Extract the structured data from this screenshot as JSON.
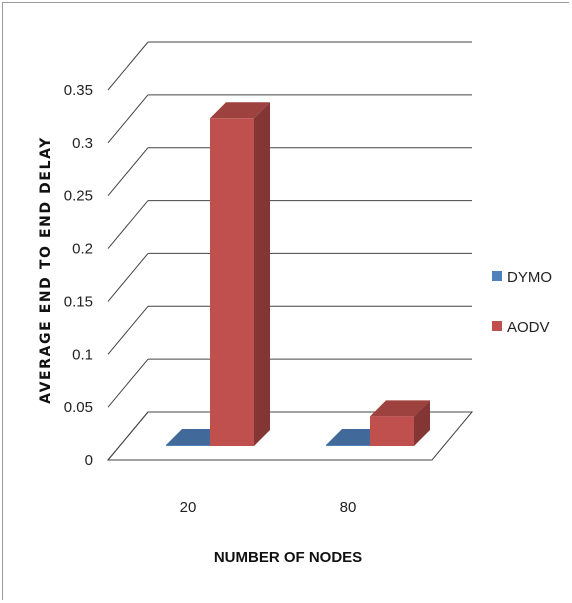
{
  "chart_data": {
    "type": "bar",
    "variant": "3d-clustered-column",
    "categories": [
      "20",
      "80"
    ],
    "series": [
      {
        "name": "DYMO",
        "values": [
          0.001,
          0.001
        ],
        "color": "#4f81bd"
      },
      {
        "name": "AODV",
        "values": [
          0.31,
          0.028
        ],
        "color": "#c0504d"
      }
    ],
    "ylabel": "AVERAGE END TO END DELAY",
    "xlabel": "NUMBER OF NODES",
    "ylim": [
      0,
      0.35
    ],
    "yticks": [
      "0",
      "0.05",
      "0.1",
      "0.15",
      "0.2",
      "0.25",
      "0.3",
      "0.35"
    ],
    "grid": true,
    "legend": "right"
  }
}
